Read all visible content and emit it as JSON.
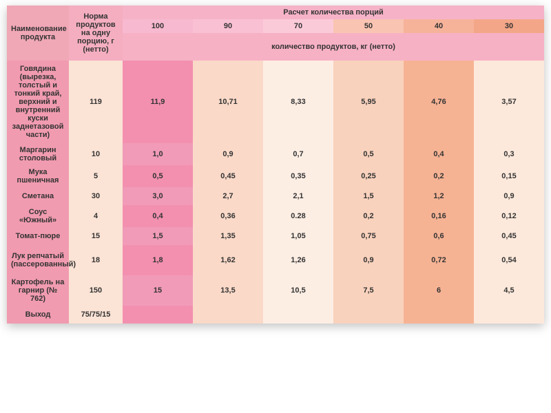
{
  "header": {
    "name": "Наименование продукта",
    "norm": "Норма продуктов на одну порцию, г (нетто)",
    "calc": "Расчет количества порций",
    "portions": [
      "100",
      "90",
      "70",
      "50",
      "40",
      "30"
    ],
    "qty": "количество продуктов, кг (нетто)"
  },
  "palette": {
    "hdr_name": "#f0a7b6",
    "hdr_norm": "#f4aec0",
    "hdr_calc": "#f6b3c8",
    "hdr_p100": "#f7b9cf",
    "hdr_p90": "#f9c0d3",
    "hdr_p70": "#fbcad9",
    "hdr_p50": "#f9c4b1",
    "hdr_p40": "#f6b39a",
    "hdr_p30": "#f4a688",
    "hdr_qty": "#f7b1c5",
    "c_name": "#f19bb0",
    "c_norm": "#fbe3d5",
    "c_p100": "#f390b0",
    "c_p100_alt": "#f19bb8",
    "c_p90": "#fad9c8",
    "c_p70": "#fdeee4",
    "c_p50": "#f9d2bd",
    "c_p40": "#f6b394",
    "c_p30": "#fde9db"
  },
  "rows": [
    {
      "name": "Говядина (вырезка, толстый и тонкий край, верхний и внутренний куски заднетазовой части)",
      "norm": "119",
      "v": [
        "11,9",
        "10,71",
        "8,33",
        "5,95",
        "4,76",
        "3,57"
      ]
    },
    {
      "name": "Маргарин столовый",
      "norm": "10",
      "v": [
        "1,0",
        "0,9",
        "0,7",
        "0,5",
        "0,4",
        "0,3"
      ]
    },
    {
      "name": "Мука пшеничная",
      "norm": "5",
      "v": [
        "0,5",
        "0,45",
        "0,35",
        "0,25",
        "0,2",
        "0,15"
      ]
    },
    {
      "name": "Сметана",
      "norm": "30",
      "v": [
        "3,0",
        "2,7",
        "2,1",
        "1,5",
        "1,2",
        "0,9"
      ]
    },
    {
      "name": "Соус «Южный»",
      "norm": "4",
      "v": [
        "0,4",
        "0,36",
        "0.28",
        "0,2",
        "0,16",
        "0,12"
      ]
    },
    {
      "name": "Томат-пюре",
      "norm": "15",
      "v": [
        "1,5",
        "1,35",
        "1,05",
        "0,75",
        "0,6",
        "0,45"
      ]
    },
    {
      "name": "Лук репчатый (пассерованный)",
      "norm": "18",
      "v": [
        "1,8",
        "1,62",
        "1,26",
        "0,9",
        "0,72",
        "0,54"
      ]
    },
    {
      "name": "Картофель на гарнир (№ 762)",
      "norm": "150",
      "v": [
        "15",
        "13,5",
        "10,5",
        "7,5",
        "6",
        "4,5"
      ]
    },
    {
      "name": "Выход",
      "norm": "75/75/15",
      "v": [
        "",
        "",
        "",
        "",
        "",
        ""
      ]
    }
  ],
  "layout": {
    "row_height_tall": 120,
    "row_height_med": 44,
    "row_height_small": 26,
    "font_size": 11
  }
}
